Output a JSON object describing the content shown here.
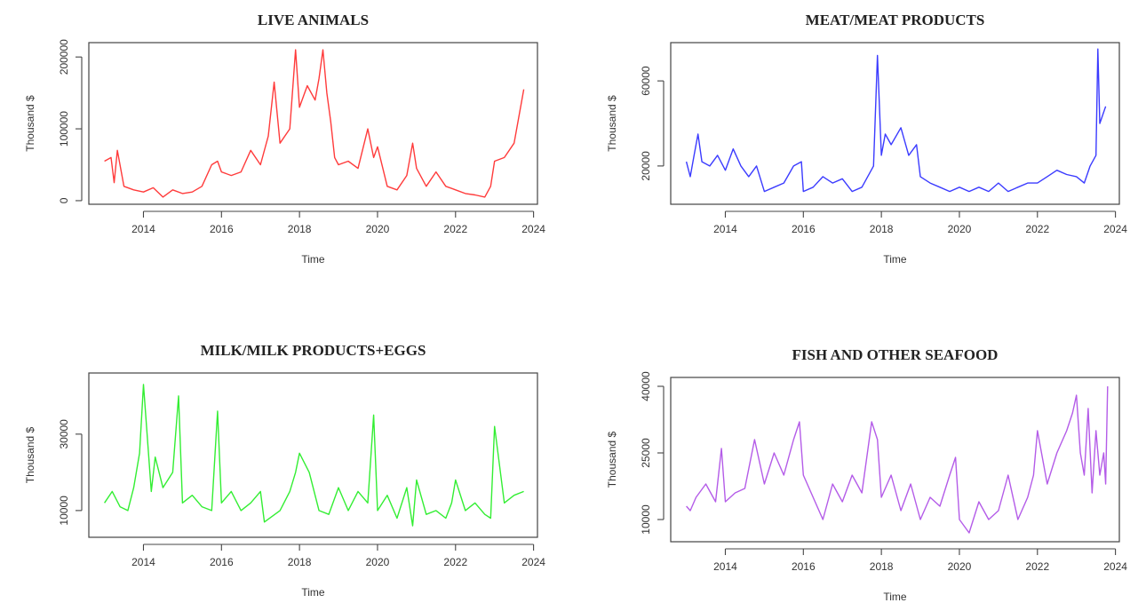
{
  "chart_data": [
    {
      "type": "line",
      "title": "LIVE ANIMALS",
      "xlabel": "Time",
      "ylabel": "Thousand $",
      "color": "#ff3b3b",
      "xlim": [
        2012.6,
        2024.1
      ],
      "ylim": [
        -5000,
        220000
      ],
      "xticks": [
        2014,
        2016,
        2018,
        2020,
        2022,
        2024
      ],
      "yticks": [
        0,
        100000,
        200000
      ],
      "x": [
        2013.0,
        2013.17,
        2013.25,
        2013.33,
        2013.5,
        2013.75,
        2014.0,
        2014.25,
        2014.5,
        2014.75,
        2015.0,
        2015.25,
        2015.5,
        2015.75,
        2015.9,
        2016.0,
        2016.25,
        2016.5,
        2016.75,
        2017.0,
        2017.2,
        2017.35,
        2017.5,
        2017.75,
        2017.9,
        2018.0,
        2018.2,
        2018.4,
        2018.5,
        2018.6,
        2018.7,
        2018.8,
        2018.9,
        2019.0,
        2019.25,
        2019.5,
        2019.75,
        2019.9,
        2020.0,
        2020.25,
        2020.5,
        2020.75,
        2020.9,
        2021.0,
        2021.25,
        2021.5,
        2021.75,
        2022.0,
        2022.25,
        2022.5,
        2022.75,
        2022.9,
        2023.0,
        2023.25,
        2023.5,
        2023.75
      ],
      "y": [
        55000,
        60000,
        25000,
        70000,
        20000,
        15000,
        12000,
        18000,
        5000,
        15000,
        10000,
        12000,
        20000,
        50000,
        55000,
        40000,
        35000,
        40000,
        70000,
        50000,
        90000,
        165000,
        80000,
        100000,
        210000,
        130000,
        160000,
        140000,
        170000,
        210000,
        150000,
        110000,
        60000,
        50000,
        55000,
        45000,
        100000,
        60000,
        75000,
        20000,
        15000,
        35000,
        80000,
        45000,
        20000,
        40000,
        20000,
        15000,
        10000,
        8000,
        5000,
        20000,
        55000,
        60000,
        80000,
        155000
      ]
    },
    {
      "type": "line",
      "title": "MEAT/MEAT PRODUCTS",
      "xlabel": "Time",
      "ylabel": "Thousand $",
      "color": "#3b3bff",
      "xlim": [
        2012.6,
        2024.1
      ],
      "ylim": [
        2000,
        78000
      ],
      "xticks": [
        2014,
        2016,
        2018,
        2020,
        2022,
        2024
      ],
      "yticks": [
        20000,
        60000
      ],
      "x": [
        2013.0,
        2013.1,
        2013.2,
        2013.3,
        2013.4,
        2013.6,
        2013.8,
        2014.0,
        2014.2,
        2014.4,
        2014.6,
        2014.8,
        2015.0,
        2015.25,
        2015.5,
        2015.75,
        2015.95,
        2016.0,
        2016.25,
        2016.5,
        2016.75,
        2017.0,
        2017.25,
        2017.5,
        2017.8,
        2017.9,
        2018.0,
        2018.1,
        2018.25,
        2018.5,
        2018.7,
        2018.9,
        2019.0,
        2019.25,
        2019.5,
        2019.75,
        2020.0,
        2020.25,
        2020.5,
        2020.75,
        2021.0,
        2021.25,
        2021.5,
        2021.75,
        2022.0,
        2022.25,
        2022.5,
        2022.75,
        2023.0,
        2023.2,
        2023.35,
        2023.5,
        2023.55,
        2023.6,
        2023.75
      ],
      "y": [
        22000,
        15000,
        25000,
        35000,
        22000,
        20000,
        25000,
        18000,
        28000,
        20000,
        15000,
        20000,
        8000,
        10000,
        12000,
        20000,
        22000,
        8000,
        10000,
        15000,
        12000,
        14000,
        8000,
        10000,
        20000,
        72000,
        25000,
        35000,
        30000,
        38000,
        25000,
        30000,
        15000,
        12000,
        10000,
        8000,
        10000,
        8000,
        10000,
        8000,
        12000,
        8000,
        10000,
        12000,
        12000,
        15000,
        18000,
        16000,
        15000,
        12000,
        20000,
        25000,
        75000,
        40000,
        48000
      ]
    },
    {
      "type": "line",
      "title": "MILK/MILK PRODUCTS+EGGS",
      "xlabel": "Time",
      "ylabel": "Thousand $",
      "color": "#33ee33",
      "xlim": [
        2012.6,
        2024.1
      ],
      "ylim": [
        3000,
        46000
      ],
      "xticks": [
        2014,
        2016,
        2018,
        2020,
        2022,
        2024
      ],
      "yticks": [
        10000,
        30000
      ],
      "x": [
        2013.0,
        2013.2,
        2013.4,
        2013.6,
        2013.75,
        2013.9,
        2014.0,
        2014.2,
        2014.3,
        2014.5,
        2014.75,
        2014.9,
        2015.0,
        2015.25,
        2015.5,
        2015.75,
        2015.9,
        2016.0,
        2016.25,
        2016.5,
        2016.75,
        2017.0,
        2017.1,
        2017.5,
        2017.75,
        2017.9,
        2018.0,
        2018.25,
        2018.5,
        2018.75,
        2019.0,
        2019.25,
        2019.5,
        2019.75,
        2019.9,
        2020.0,
        2020.25,
        2020.5,
        2020.75,
        2020.9,
        2021.0,
        2021.25,
        2021.5,
        2021.75,
        2021.9,
        2022.0,
        2022.25,
        2022.5,
        2022.75,
        2022.9,
        2023.0,
        2023.25,
        2023.5,
        2023.75
      ],
      "y": [
        12000,
        15000,
        11000,
        10000,
        16000,
        25000,
        43000,
        15000,
        24000,
        16000,
        20000,
        40000,
        12000,
        14000,
        11000,
        10000,
        36000,
        12000,
        15000,
        10000,
        12000,
        15000,
        7000,
        10000,
        15000,
        20000,
        25000,
        20000,
        10000,
        9000,
        16000,
        10000,
        15000,
        12000,
        35000,
        10000,
        14000,
        8000,
        16000,
        6000,
        18000,
        9000,
        10000,
        8000,
        12000,
        18000,
        10000,
        12000,
        9000,
        8000,
        32000,
        12000,
        14000,
        15000
      ]
    },
    {
      "type": "line",
      "title": "FISH AND OTHER SEAFOOD",
      "xlabel": "Time",
      "ylabel": "Thousand $",
      "color": "#b45ce8",
      "xlim": [
        2012.6,
        2024.1
      ],
      "ylim": [
        5000,
        42000
      ],
      "xticks": [
        2014,
        2016,
        2018,
        2020,
        2022,
        2024
      ],
      "yticks": [
        10000,
        25000,
        40000
      ],
      "x": [
        2013.0,
        2013.1,
        2013.25,
        2013.5,
        2013.75,
        2013.9,
        2014.0,
        2014.25,
        2014.5,
        2014.75,
        2015.0,
        2015.25,
        2015.5,
        2015.75,
        2015.9,
        2016.0,
        2016.25,
        2016.5,
        2016.75,
        2017.0,
        2017.25,
        2017.5,
        2017.75,
        2017.9,
        2018.0,
        2018.25,
        2018.5,
        2018.75,
        2019.0,
        2019.25,
        2019.5,
        2019.75,
        2019.9,
        2020.0,
        2020.25,
        2020.5,
        2020.75,
        2021.0,
        2021.25,
        2021.5,
        2021.75,
        2021.9,
        2022.0,
        2022.25,
        2022.5,
        2022.75,
        2022.9,
        2023.0,
        2023.1,
        2023.2,
        2023.3,
        2023.4,
        2023.5,
        2023.6,
        2023.7,
        2023.75,
        2023.8
      ],
      "y": [
        13000,
        12000,
        15000,
        18000,
        14000,
        26000,
        14000,
        16000,
        17000,
        28000,
        18000,
        25000,
        20000,
        28000,
        32000,
        20000,
        15000,
        10000,
        18000,
        14000,
        20000,
        16000,
        32000,
        28000,
        15000,
        20000,
        12000,
        18000,
        10000,
        15000,
        13000,
        20000,
        24000,
        10000,
        7000,
        14000,
        10000,
        12000,
        20000,
        10000,
        15000,
        20000,
        30000,
        18000,
        25000,
        30000,
        34000,
        38000,
        25000,
        20000,
        35000,
        16000,
        30000,
        20000,
        25000,
        18000,
        40000
      ]
    }
  ]
}
